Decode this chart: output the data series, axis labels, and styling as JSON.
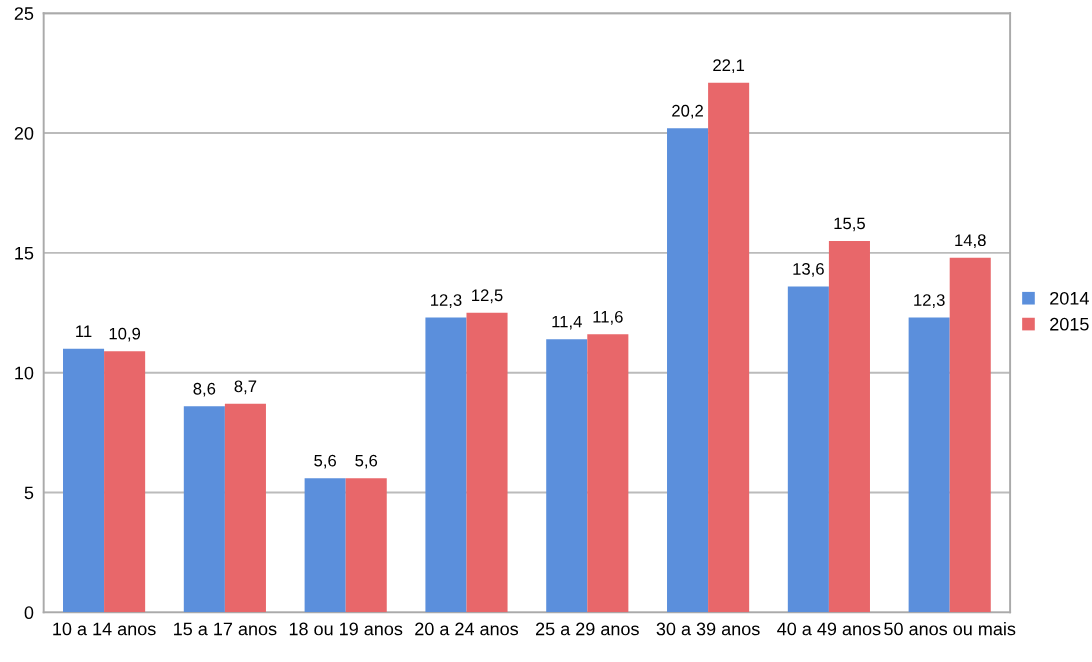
{
  "chart_data": {
    "type": "bar",
    "categories": [
      "10 a 14 anos",
      "15 a 17 anos",
      "18 ou 19 anos",
      "20 a 24 anos",
      "25 a 29 anos",
      "30 a 39 anos",
      "40 a 49 anos",
      "50 anos ou mais"
    ],
    "series": [
      {
        "name": "2014",
        "color": "#5b8fdc",
        "values": [
          11,
          8.6,
          5.6,
          12.3,
          11.4,
          20.2,
          13.6,
          12.3
        ],
        "value_labels": [
          "11",
          "8,6",
          "5,6",
          "12,3",
          "11,4",
          "20,2",
          "13,6",
          "12,3"
        ]
      },
      {
        "name": "2015",
        "color": "#e8676a",
        "values": [
          10.9,
          8.7,
          5.6,
          12.5,
          11.6,
          22.1,
          15.5,
          14.8
        ],
        "value_labels": [
          "10,9",
          "8,7",
          "5,6",
          "12,5",
          "11,6",
          "22,1",
          "15,5",
          "14,8"
        ]
      }
    ],
    "ylim": [
      0,
      25
    ],
    "yticks": [
      0,
      5,
      10,
      15,
      20,
      25
    ],
    "grid": "y",
    "legend": "right"
  }
}
